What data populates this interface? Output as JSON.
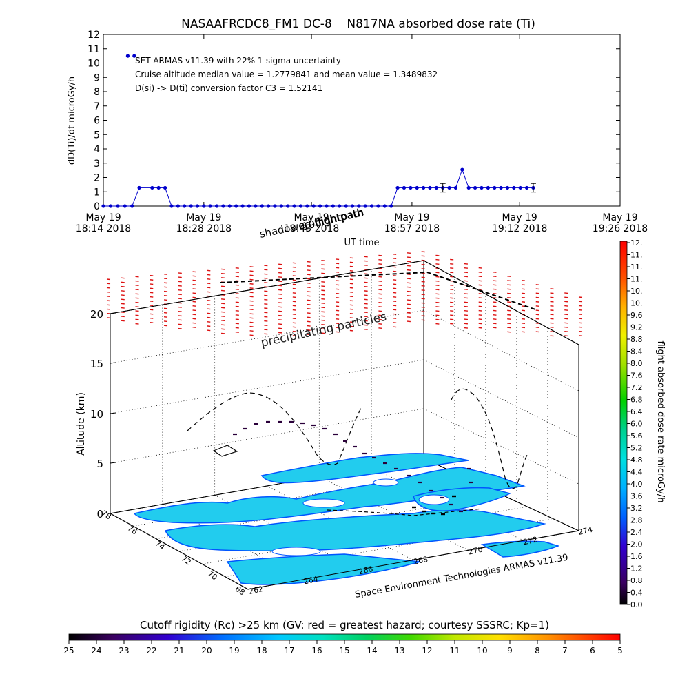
{
  "chart_data": [
    {
      "type": "line",
      "title": "NASAAFRCDC8_FM1 DC-8    N817NA absorbed dose rate (Ti)",
      "ylabel": "dD(Ti)/dt microGy/h",
      "xlabel": "UT time",
      "ylim": [
        0,
        12
      ],
      "yticks": [
        "0",
        "1",
        "2",
        "3",
        "4",
        "5",
        "6",
        "7",
        "8",
        "9",
        "10",
        "11",
        "12"
      ],
      "xlim_minutes": [
        0,
        72
      ],
      "xticks": [
        {
          "minute": 0,
          "line1": "May 19",
          "line2": "18:14 2018"
        },
        {
          "minute": 14,
          "line1": "May 19",
          "line2": "18:28 2018"
        },
        {
          "minute": 29,
          "line1": "May 19",
          "line2": "18:43 2018"
        },
        {
          "minute": 43,
          "line1": "May 19",
          "line2": "18:57 2018"
        },
        {
          "minute": 58,
          "line1": "May 19",
          "line2": "19:12 2018"
        },
        {
          "minute": 72,
          "line1": "May 19",
          "line2": "19:26 2018"
        }
      ],
      "annotations": [
        "SET ARMAS v11.39 with 22% 1-sigma uncertainty",
        "Cruise altitude median value = 1.2779841 and mean value = 1.3489832",
        "D(si) -> D(ti) conversion factor C3 = 1.52141"
      ],
      "series": [
        {
          "color": "#0000cc",
          "x": [
            3.4,
            4.3,
            0,
            1,
            2,
            3,
            4,
            5,
            6.8,
            7.7,
            8.6,
            9.5,
            10.4,
            11.3,
            12.2,
            13.1,
            14,
            14.9,
            15.8,
            16.7,
            17.6,
            18.5,
            19.4,
            20.3,
            21.2,
            22.1,
            23,
            23.9,
            24.8,
            25.7,
            26.6,
            27.5,
            28.4,
            29.3,
            30.2,
            31.1,
            32,
            32.9,
            33.8,
            34.7,
            35.6,
            36.5,
            37.4,
            38.3,
            39.2,
            40.1,
            41,
            41.9,
            42.8,
            43.7,
            44.6,
            45.5,
            46.4,
            47.3,
            48.2,
            49.1,
            50,
            50.9,
            51.8,
            52.7,
            53.6,
            54.5,
            55.4,
            56.3,
            57.2,
            58.1,
            59,
            59.9
          ],
          "y": [
            10.5,
            10.5,
            0,
            0,
            0,
            0,
            0,
            1.28,
            1.28,
            1.28,
            1.28,
            0,
            0,
            0,
            0,
            0,
            0,
            0,
            0,
            0,
            0,
            0,
            0,
            0,
            0,
            0,
            0,
            0,
            0,
            0,
            0,
            0,
            0,
            0,
            0,
            0,
            0,
            0,
            0,
            0,
            0,
            0,
            0,
            0,
            0,
            0,
            1.28,
            1.28,
            1.28,
            1.28,
            1.28,
            1.28,
            1.28,
            1.28,
            1.28,
            1.28,
            2.55,
            1.28,
            1.28,
            1.28,
            1.28,
            1.28,
            1.28,
            1.28,
            1.28,
            1.28,
            1.28,
            1.28
          ],
          "error_bars": [
            {
              "x": 47.3,
              "y": 1.28,
              "err": 0.3
            },
            {
              "x": 59.9,
              "y": 1.28,
              "err": 0.3
            }
          ]
        }
      ]
    },
    {
      "type": "scatter",
      "ylabel": "Altitude (km)",
      "zticks": [
        "0",
        "5",
        "10",
        "15",
        "20"
      ],
      "lat_ticks": [
        "68",
        "70",
        "72",
        "74",
        "76",
        "78"
      ],
      "lon_ticks": [
        "262",
        "264",
        "266",
        "268",
        "270",
        "272",
        "274"
      ],
      "labels": [
        "shadowed flightpath",
        "19flightpath",
        "precipitating particles"
      ],
      "credit": "Space Environment Technologies ARMAS v11.39",
      "colorbar": {
        "label": "flight absorbed dose rate microGy/h",
        "ticks": [
          "0.0",
          "0.4",
          "0.8",
          "1.2",
          "1.6",
          "2.0",
          "2.4",
          "2.8",
          "3.2",
          "3.6",
          "4.0",
          "4.4",
          "4.8",
          "5.2",
          "5.6",
          "6.0",
          "6.4",
          "6.8",
          "7.2",
          "7.6",
          "8.0",
          "8.4",
          "8.8",
          "9.2",
          "9.6",
          "10.",
          "10.",
          "11.",
          "11.",
          "11.",
          "12."
        ]
      }
    },
    {
      "type": "heatmap",
      "title": "Cutoff rigidity (Rc) >25 km (GV: red = greatest hazard; courtesy SSSRC; Kp=1)",
      "ticks": [
        "25",
        "24",
        "23",
        "22",
        "21",
        "20",
        "19",
        "18",
        "17",
        "16",
        "15",
        "14",
        "13",
        "12",
        "11",
        "10",
        "9",
        "8",
        "7",
        "6",
        "5"
      ]
    }
  ],
  "colors": {
    "series": "#0000cc",
    "precip": "#dd1111",
    "land": "#22ccee",
    "landEdge": "#0055ff",
    "axes": "#000000"
  }
}
